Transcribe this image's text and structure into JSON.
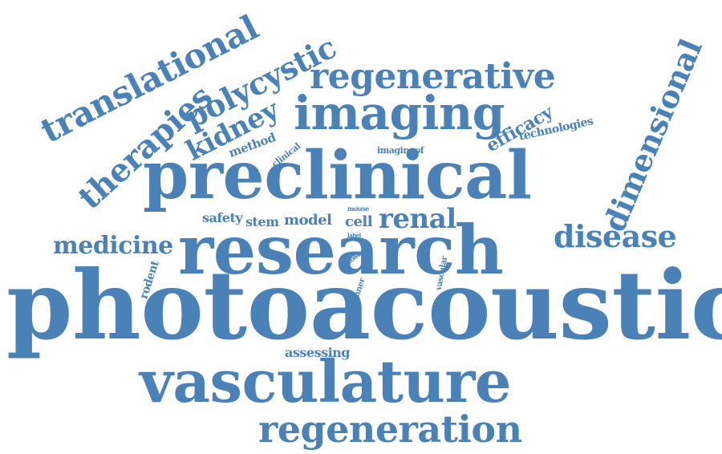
{
  "color": "#4a82b8",
  "words": [
    "photoacoustic",
    "research",
    "preclinical",
    "vasculature",
    "imaging",
    "regeneration",
    "regenerative",
    "disease",
    "translational",
    "therapies",
    "polycystic",
    "kidney",
    "renal",
    "medicine",
    "dimensional",
    "efficacy",
    "technologies",
    "method",
    "clinical",
    "imagingof",
    "safety",
    "stem",
    "model",
    "cell",
    "mouse",
    "label",
    "most",
    "rodent",
    "scanner",
    "vascular",
    "assessing"
  ]
}
